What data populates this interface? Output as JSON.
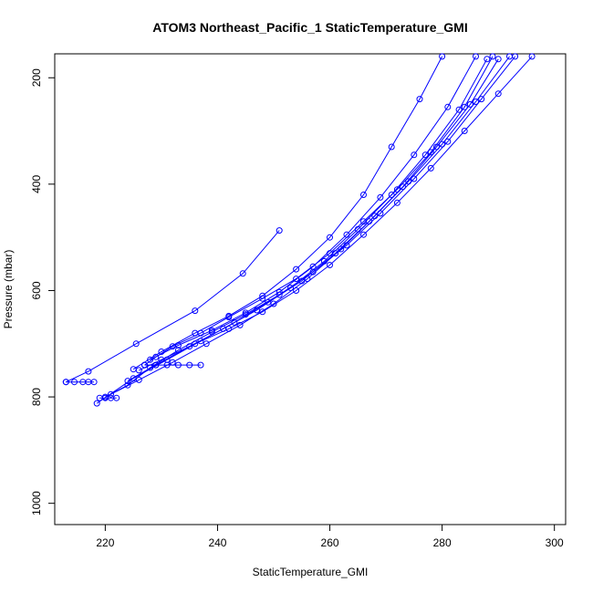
{
  "chart_data": {
    "type": "line",
    "title": "ATOM3 Northeast_Pacific_1 StaticTemperature_GMI",
    "xlabel": "StaticTemperature_GMI",
    "ylabel": "Pressure (mbar)",
    "xlim": [
      211,
      302
    ],
    "ylim": [
      1040,
      155
    ],
    "y_reversed": true,
    "x_ticks": [
      220,
      240,
      260,
      280,
      300
    ],
    "y_ticks": [
      200,
      400,
      600,
      800,
      1000
    ],
    "grid": false,
    "legend": "none",
    "color": "#0000ff",
    "marker": "open-circle",
    "series": [
      {
        "x": [
          251,
          244.5,
          236,
          225.5,
          217,
          213
        ],
        "y": [
          487,
          568,
          638,
          700,
          752,
          772
        ]
      },
      {
        "x": [
          213,
          214.5,
          216,
          217,
          218
        ],
        "y": [
          772,
          772,
          772,
          772,
          772
        ]
      },
      {
        "x": [
          289,
          284,
          278,
          272,
          266,
          260,
          254,
          248,
          242,
          237,
          232,
          229,
          227
        ],
        "y": [
          160,
          255,
          340,
          410,
          470,
          530,
          578,
          615,
          650,
          680,
          705,
          725,
          740
        ]
      },
      {
        "x": [
          227,
          229,
          231,
          233,
          235,
          237
        ],
        "y": [
          740,
          740,
          740,
          740,
          740,
          740
        ]
      },
      {
        "x": [
          293,
          287,
          281,
          275,
          269,
          263,
          257,
          251,
          245,
          239,
          233,
          228,
          224,
          220
        ],
        "y": [
          160,
          240,
          320,
          390,
          455,
          515,
          565,
          608,
          645,
          678,
          712,
          745,
          778,
          800
        ]
      },
      {
        "x": [
          219,
          220,
          221,
          222
        ],
        "y": [
          802,
          802,
          802,
          802
        ]
      },
      {
        "x": [
          290,
          285,
          279,
          273,
          267,
          261,
          255,
          249,
          243,
          237,
          231,
          225,
          218.5
        ],
        "y": [
          165,
          250,
          330,
          405,
          470,
          530,
          582,
          622,
          660,
          695,
          730,
          765,
          812
        ]
      },
      {
        "x": [
          280,
          276,
          271,
          266,
          260,
          254,
          248,
          242,
          236,
          230,
          225
        ],
        "y": [
          160,
          240,
          330,
          420,
          500,
          560,
          610,
          648,
          680,
          715,
          748
        ]
      },
      {
        "x": [
          288,
          283,
          277,
          271,
          265,
          259,
          253,
          247,
          241,
          235,
          229,
          224
        ],
        "y": [
          165,
          260,
          345,
          420,
          485,
          545,
          595,
          637,
          672,
          705,
          740,
          770
        ]
      },
      {
        "x": [
          296,
          290,
          284,
          278,
          272,
          266,
          260,
          254,
          248,
          242,
          236,
          230,
          226
        ],
        "y": [
          160,
          230,
          300,
          370,
          435,
          495,
          552,
          600,
          640,
          672,
          700,
          730,
          750
        ]
      },
      {
        "x": [
          286,
          281,
          275,
          269,
          263,
          257,
          251,
          245,
          239,
          233,
          228
        ],
        "y": [
          160,
          255,
          345,
          425,
          495,
          555,
          603,
          642,
          675,
          703,
          730
        ]
      },
      {
        "x": [
          292,
          286,
          280,
          274,
          268,
          262,
          256,
          250,
          244,
          238,
          232,
          226,
          221
        ],
        "y": [
          160,
          245,
          325,
          395,
          460,
          522,
          578,
          625,
          665,
          700,
          735,
          768,
          795
        ]
      }
    ]
  }
}
